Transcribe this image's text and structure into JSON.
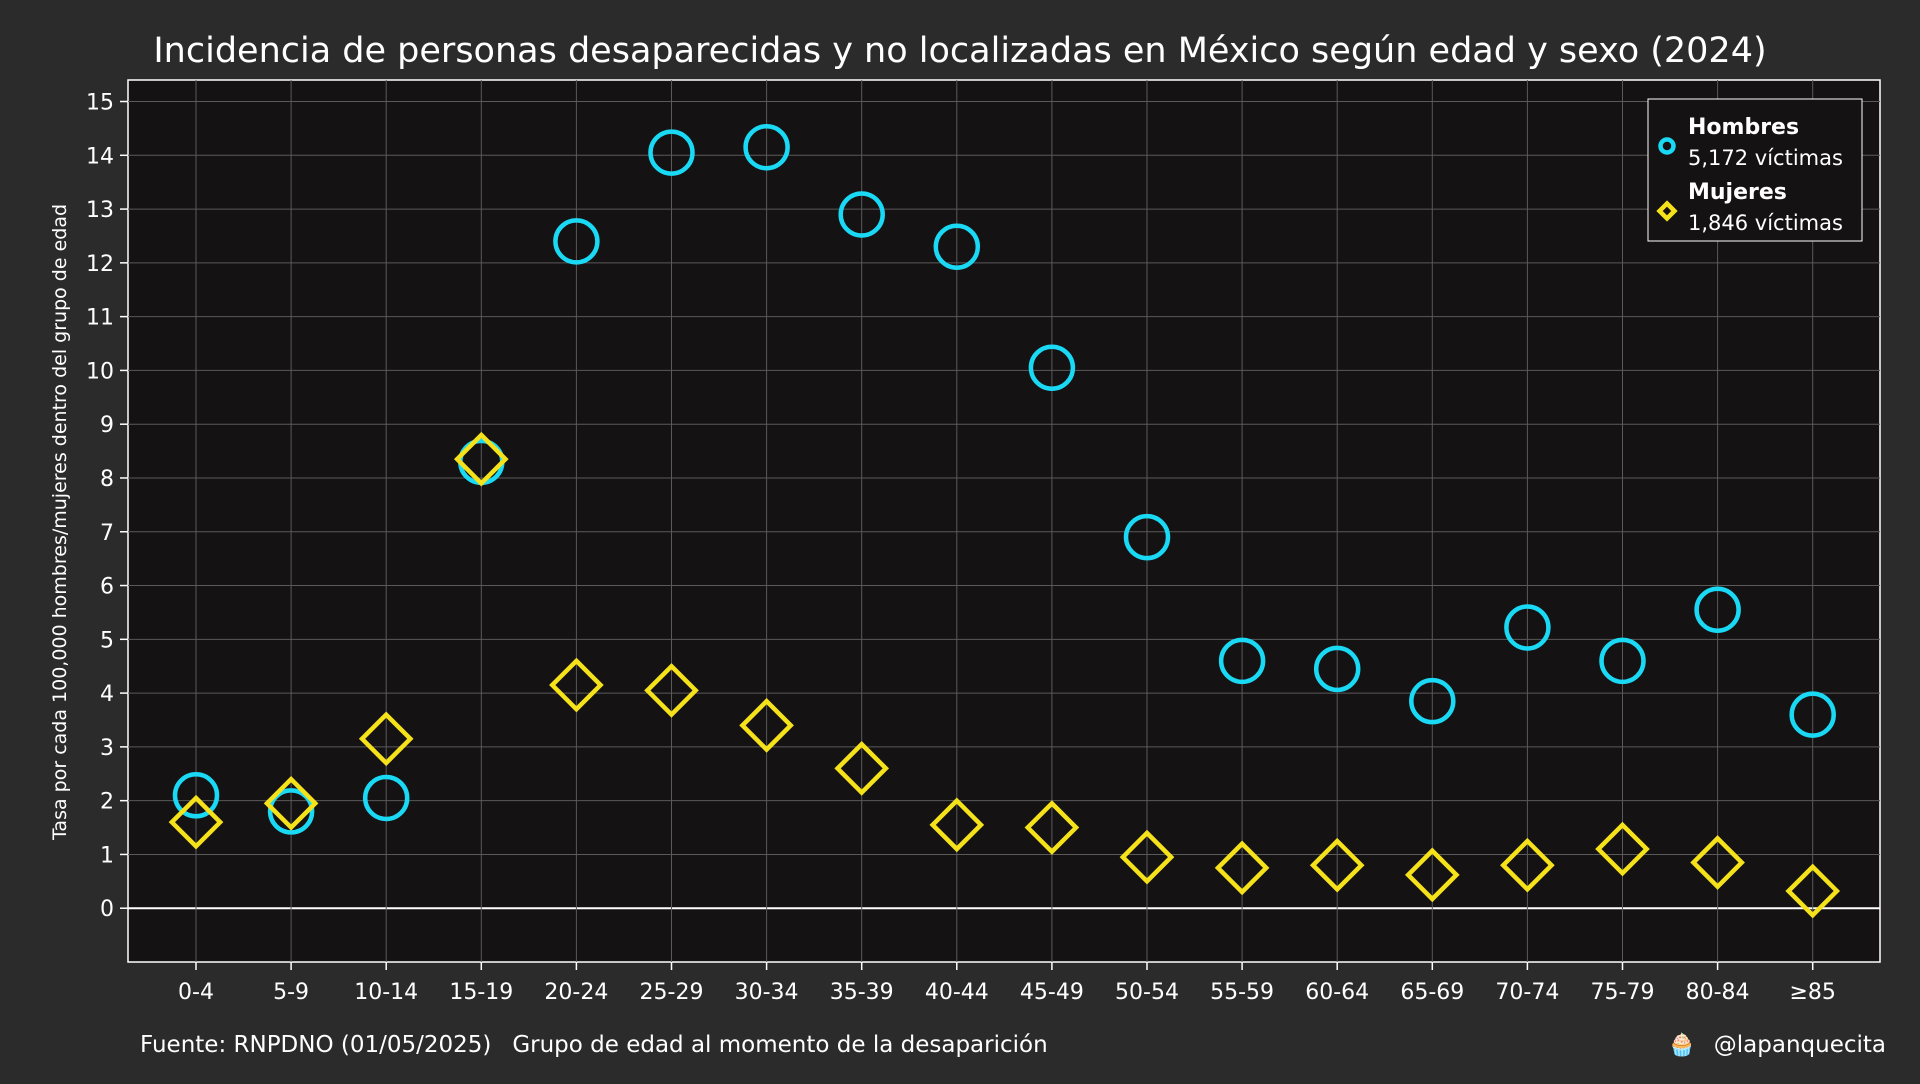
{
  "chart_data": {
    "type": "scatter",
    "title": "Incidencia de personas desaparecidas y no localizadas en México según edad y sexo (2024)",
    "xlabel": "Grupo de edad al momento de la desaparición",
    "ylabel": "Tasa por cada 100,000 hombres/mujeres dentro del grupo de edad",
    "source": "Fuente: RNPDNO (01/05/2025)",
    "credit_icon": "cupcake-icon",
    "credit": "@lapanquecita",
    "categories": [
      "0-4",
      "5-9",
      "10-14",
      "15-19",
      "20-24",
      "25-29",
      "30-34",
      "35-39",
      "40-44",
      "45-49",
      "50-54",
      "55-59",
      "60-64",
      "65-69",
      "70-74",
      "75-79",
      "80-84",
      "≥85"
    ],
    "ylim": [
      -1,
      15.4
    ],
    "yticks": [
      0,
      1,
      2,
      3,
      4,
      5,
      6,
      7,
      8,
      9,
      10,
      11,
      12,
      13,
      14,
      15
    ],
    "grid": true,
    "legend_position": "top-right",
    "series": [
      {
        "name": "Hombres",
        "subtitle": "5,172 víctimas",
        "marker": "circle",
        "color": "#1ad9f5",
        "values": [
          2.1,
          1.8,
          2.05,
          8.3,
          12.4,
          14.05,
          14.15,
          12.9,
          12.3,
          10.05,
          6.9,
          4.6,
          4.45,
          3.85,
          5.22,
          4.6,
          5.55,
          3.6
        ]
      },
      {
        "name": "Mujeres",
        "subtitle": "1,846 víctimas",
        "marker": "diamond",
        "color": "#f5e21a",
        "values": [
          1.6,
          1.95,
          3.15,
          8.35,
          4.15,
          4.05,
          3.4,
          2.6,
          1.55,
          1.5,
          0.95,
          0.75,
          0.8,
          0.62,
          0.8,
          1.1,
          0.85,
          0.32
        ]
      }
    ],
    "colors": {
      "background": "#2b2b2b",
      "plot_background": "#151213",
      "grid": "#5a5a5a",
      "text": "#ffffff"
    }
  }
}
